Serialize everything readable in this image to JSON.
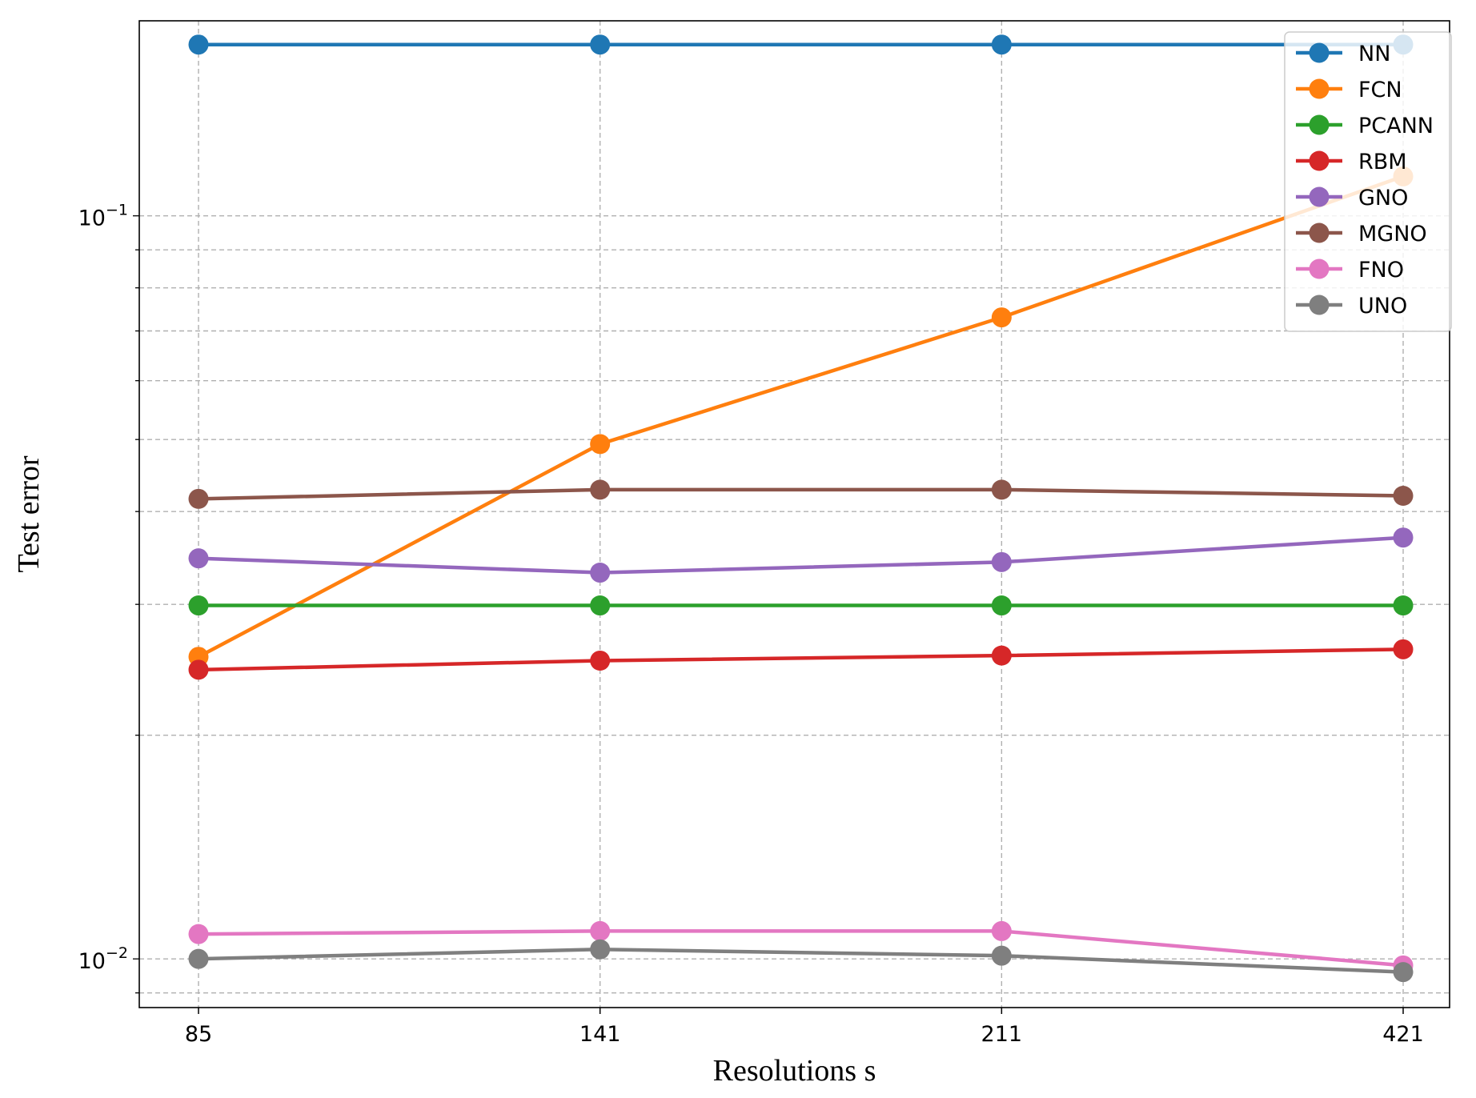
{
  "chart_data": {
    "type": "line",
    "xlabel": "Resolutions s",
    "ylabel": "Test error",
    "x": [
      85,
      141,
      211,
      421
    ],
    "x_tick_labels": [
      "85",
      "141",
      "211",
      "421"
    ],
    "y_scale": "log",
    "y_tick_labels": [
      {
        "value": 0.01,
        "base": "10",
        "exp": "−2"
      },
      {
        "value": 0.1,
        "base": "10",
        "exp": "−1"
      }
    ],
    "ylim": [
      0.0086,
      0.183
    ],
    "grid": true,
    "legend_position": "upper right",
    "series": [
      {
        "name": "NN",
        "color": "#1f77b4",
        "values": [
          0.17,
          0.17,
          0.17,
          0.17
        ]
      },
      {
        "name": "FCN",
        "color": "#ff7f0e",
        "values": [
          0.0255,
          0.0493,
          0.073,
          0.113
        ]
      },
      {
        "name": "PCANN",
        "color": "#2ca02c",
        "values": [
          0.0299,
          0.0299,
          0.0299,
          0.0299
        ]
      },
      {
        "name": "RBM",
        "color": "#d62728",
        "values": [
          0.0245,
          0.0252,
          0.0256,
          0.0261
        ]
      },
      {
        "name": "GNO",
        "color": "#9467bd",
        "values": [
          0.0346,
          0.0331,
          0.0342,
          0.0369
        ]
      },
      {
        "name": "MGNO",
        "color": "#8c564b",
        "values": [
          0.0416,
          0.0428,
          0.0428,
          0.042
        ]
      },
      {
        "name": "FNO",
        "color": "#e377c2",
        "values": [
          0.0108,
          0.0109,
          0.0109,
          0.0098
        ]
      },
      {
        "name": "UNO",
        "color": "#7f7f7f",
        "values": [
          0.01,
          0.0103,
          0.0101,
          0.0096
        ]
      }
    ]
  }
}
